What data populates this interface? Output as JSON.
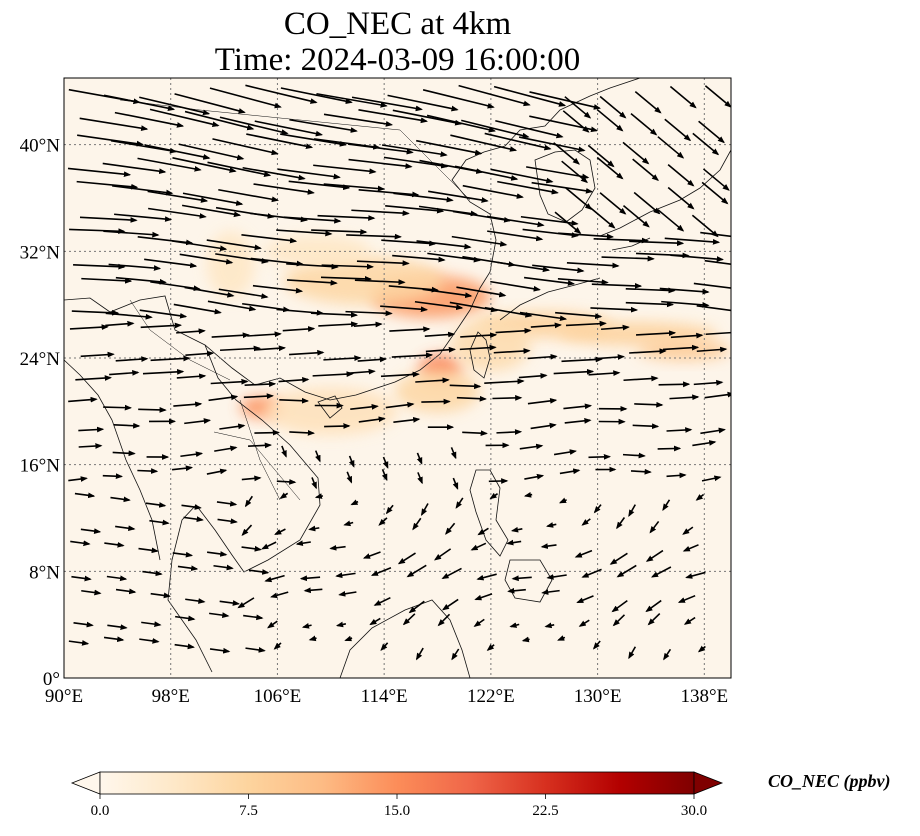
{
  "title": {
    "line1": "CO_NEC at 4km",
    "line2": "Time: 2024-03-09 16:00:00"
  },
  "map": {
    "projection": "PlateCarree",
    "lon_range": [
      90,
      140
    ],
    "lat_range": [
      0,
      45
    ],
    "background_color": "#fdf5ea",
    "gridlines": "dotted",
    "x_ticks": [
      {
        "value": 90,
        "label": "90°E"
      },
      {
        "value": 98,
        "label": "98°E"
      },
      {
        "value": 106,
        "label": "106°E"
      },
      {
        "value": 114,
        "label": "114°E"
      },
      {
        "value": 122,
        "label": "122°E"
      },
      {
        "value": 130,
        "label": "130°E"
      },
      {
        "value": 138,
        "label": "138°E"
      }
    ],
    "y_ticks": [
      {
        "value": 0,
        "label": "0°"
      },
      {
        "value": 8,
        "label": "8°N"
      },
      {
        "value": 16,
        "label": "16°N"
      },
      {
        "value": 24,
        "label": "24°N"
      },
      {
        "value": 32,
        "label": "32°N"
      },
      {
        "value": 40,
        "label": "40°N"
      }
    ],
    "plumes": [
      {
        "lon": 117.5,
        "lat": 28.6,
        "rlon": 4.5,
        "rlat": 1.6,
        "value": 14
      },
      {
        "lon": 112.5,
        "lat": 29.8,
        "rlon": 6,
        "rlat": 1.8,
        "value": 7
      },
      {
        "lon": 118.2,
        "lat": 23.2,
        "rlon": 1.6,
        "rlat": 1.1,
        "value": 16
      },
      {
        "lon": 118,
        "lat": 21.5,
        "rlon": 3.2,
        "rlat": 1.6,
        "value": 7
      },
      {
        "lon": 104.8,
        "lat": 20.3,
        "rlon": 1.6,
        "rlat": 0.8,
        "value": 15
      },
      {
        "lon": 110,
        "lat": 20.0,
        "rlon": 5,
        "rlat": 1.8,
        "value": 5
      },
      {
        "lon": 126,
        "lat": 26.5,
        "rlon": 5,
        "rlat": 1.0,
        "value": 8
      },
      {
        "lon": 133,
        "lat": 25.8,
        "rlon": 6,
        "rlat": 0.9,
        "value": 8
      },
      {
        "lon": 136.5,
        "lat": 24.6,
        "rlon": 3.5,
        "rlat": 0.8,
        "value": 9
      },
      {
        "lon": 122,
        "lat": 25.0,
        "rlon": 3,
        "rlat": 2,
        "value": 6
      },
      {
        "lon": 109,
        "lat": 32.0,
        "rlon": 4,
        "rlat": 1.2,
        "value": 4
      },
      {
        "lon": 102.5,
        "lat": 31.0,
        "rlon": 1.8,
        "rlat": 2.5,
        "value": 4
      }
    ]
  },
  "colorbar": {
    "label": "CO_NEC (ppbv)",
    "min": 0,
    "max": 30,
    "ticks": [
      "0.0",
      "7.5",
      "15.0",
      "22.5",
      "30.0"
    ],
    "colormap": "OrRd",
    "stops": [
      "#fff7ec",
      "#fee8c8",
      "#fdd49e",
      "#fdbb84",
      "#fc8d59",
      "#ef6548",
      "#d7301f",
      "#b30000",
      "#7f0000"
    ],
    "extend": "both"
  }
}
